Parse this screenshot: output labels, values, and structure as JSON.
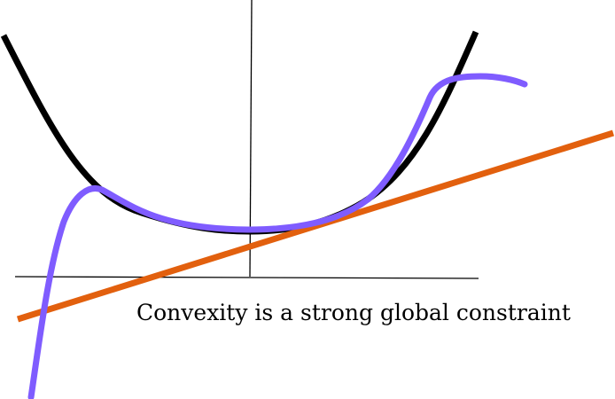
{
  "caption": "Convexity is a strong global constraint",
  "colors": {
    "background": "#ffffff",
    "axes": "#000000",
    "convex_curve": "#000000",
    "wiggly_curve": "#7f5cff",
    "tangent_line": "#e2600e",
    "caption": "#000000"
  }
}
